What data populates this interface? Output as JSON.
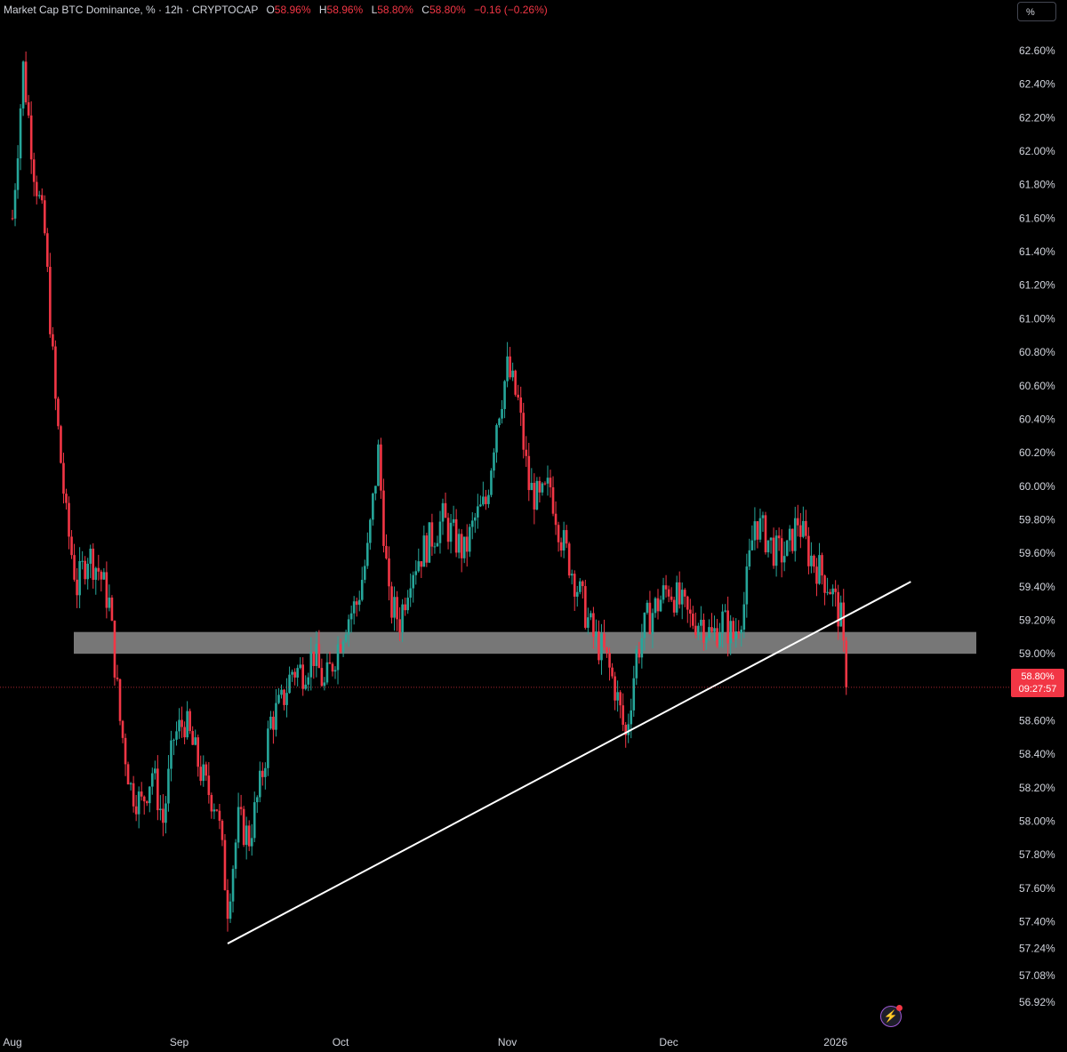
{
  "header": {
    "title": "Market Cap BTC Dominance, % · 12h · CRYPTOCAP",
    "o_key": "O",
    "o_val": "58.96%",
    "h_key": "H",
    "h_val": "58.96%",
    "l_key": "L",
    "l_val": "58.80%",
    "c_key": "C",
    "c_val": "58.80%",
    "change": "−0.16 (−0.26%)"
  },
  "unit_button": "%",
  "price_badge": {
    "price": "58.80%",
    "countdown": "09:27:57"
  },
  "colors": {
    "up": "#26a69a",
    "down": "#f23645",
    "zone": "#8c8c8c",
    "trend": "#ffffff",
    "bg": "#000000"
  },
  "icons": {
    "bolt": "lightning-icon"
  },
  "chart_data": {
    "type": "candlestick",
    "title": "Market Cap BTC Dominance, % · 12h · CRYPTOCAP",
    "interval": "12h",
    "x_ticks": [
      "Aug",
      "Sep",
      "Oct",
      "Nov",
      "Dec",
      "2026"
    ],
    "y_ticks": [
      "62.60%",
      "62.40%",
      "62.20%",
      "62.00%",
      "61.80%",
      "61.60%",
      "61.40%",
      "61.20%",
      "61.00%",
      "60.80%",
      "60.60%",
      "60.40%",
      "60.20%",
      "60.00%",
      "59.80%",
      "59.60%",
      "59.40%",
      "59.20%",
      "59.00%",
      "58.60%",
      "58.40%",
      "58.20%",
      "58.00%",
      "57.80%",
      "57.60%",
      "57.40%",
      "57.24%",
      "57.08%",
      "56.92%"
    ],
    "ylim": [
      56.85,
      62.72
    ],
    "last_price": 58.8,
    "close_path": [
      [
        "2025-08-01",
        61.6
      ],
      [
        "2025-08-03",
        62.5
      ],
      [
        "2025-08-05",
        61.9
      ],
      [
        "2025-08-07",
        61.5
      ],
      [
        "2025-08-09",
        60.5
      ],
      [
        "2025-08-11",
        59.8
      ],
      [
        "2025-08-13",
        59.4
      ],
      [
        "2025-08-15",
        59.6
      ],
      [
        "2025-08-17",
        59.5
      ],
      [
        "2025-08-19",
        59.3
      ],
      [
        "2025-08-21",
        58.6
      ],
      [
        "2025-08-23",
        58.2
      ],
      [
        "2025-08-25",
        58.1
      ],
      [
        "2025-08-27",
        58.3
      ],
      [
        "2025-08-29",
        58.0
      ],
      [
        "2025-08-31",
        58.5
      ],
      [
        "2025-09-02",
        58.6
      ],
      [
        "2025-09-04",
        58.4
      ],
      [
        "2025-09-06",
        58.2
      ],
      [
        "2025-09-08",
        58.1
      ],
      [
        "2025-09-10",
        57.5
      ],
      [
        "2025-09-12",
        58.0
      ],
      [
        "2025-09-14",
        57.9
      ],
      [
        "2025-09-16",
        58.2
      ],
      [
        "2025-09-18",
        58.6
      ],
      [
        "2025-09-20",
        58.7
      ],
      [
        "2025-09-22",
        58.9
      ],
      [
        "2025-09-24",
        58.9
      ],
      [
        "2025-09-26",
        59.0
      ],
      [
        "2025-09-28",
        58.8
      ],
      [
        "2025-09-30",
        59.0
      ],
      [
        "2025-10-02",
        59.2
      ],
      [
        "2025-10-04",
        59.3
      ],
      [
        "2025-10-06",
        59.6
      ],
      [
        "2025-10-08",
        60.2
      ],
      [
        "2025-10-10",
        59.3
      ],
      [
        "2025-10-12",
        59.2
      ],
      [
        "2025-10-14",
        59.5
      ],
      [
        "2025-10-16",
        59.6
      ],
      [
        "2025-10-18",
        59.7
      ],
      [
        "2025-10-20",
        59.8
      ],
      [
        "2025-10-22",
        59.7
      ],
      [
        "2025-10-24",
        59.6
      ],
      [
        "2025-10-26",
        59.8
      ],
      [
        "2025-10-28",
        59.9
      ],
      [
        "2025-10-30",
        60.4
      ],
      [
        "2025-11-01",
        60.7
      ],
      [
        "2025-11-03",
        60.5
      ],
      [
        "2025-11-05",
        60.0
      ],
      [
        "2025-11-07",
        59.9
      ],
      [
        "2025-11-09",
        60.0
      ],
      [
        "2025-11-11",
        59.7
      ],
      [
        "2025-11-13",
        59.5
      ],
      [
        "2025-11-15",
        59.3
      ],
      [
        "2025-11-17",
        59.1
      ],
      [
        "2025-11-19",
        59.0
      ],
      [
        "2025-11-21",
        58.8
      ],
      [
        "2025-11-23",
        58.5
      ],
      [
        "2025-11-25",
        59.0
      ],
      [
        "2025-11-27",
        59.2
      ],
      [
        "2025-11-29",
        59.3
      ],
      [
        "2025-12-01",
        59.4
      ],
      [
        "2025-12-03",
        59.3
      ],
      [
        "2025-12-05",
        59.2
      ],
      [
        "2025-12-07",
        59.2
      ],
      [
        "2025-12-09",
        59.1
      ],
      [
        "2025-12-11",
        59.2
      ],
      [
        "2025-12-13",
        59.1
      ],
      [
        "2025-12-15",
        59.3
      ],
      [
        "2025-12-17",
        59.8
      ],
      [
        "2025-12-19",
        59.7
      ],
      [
        "2025-12-21",
        59.6
      ],
      [
        "2025-12-23",
        59.6
      ],
      [
        "2025-12-25",
        59.8
      ],
      [
        "2025-12-27",
        59.6
      ],
      [
        "2025-12-29",
        59.5
      ],
      [
        "2025-12-31",
        59.4
      ],
      [
        "2026-01-02",
        59.2
      ],
      [
        "2026-01-03",
        58.8
      ]
    ],
    "support_zone": [
      59.0,
      59.13
    ],
    "trendline": [
      [
        "2025-09-10",
        57.27
      ],
      [
        "2026-01-15",
        59.43
      ]
    ],
    "grid": false
  }
}
